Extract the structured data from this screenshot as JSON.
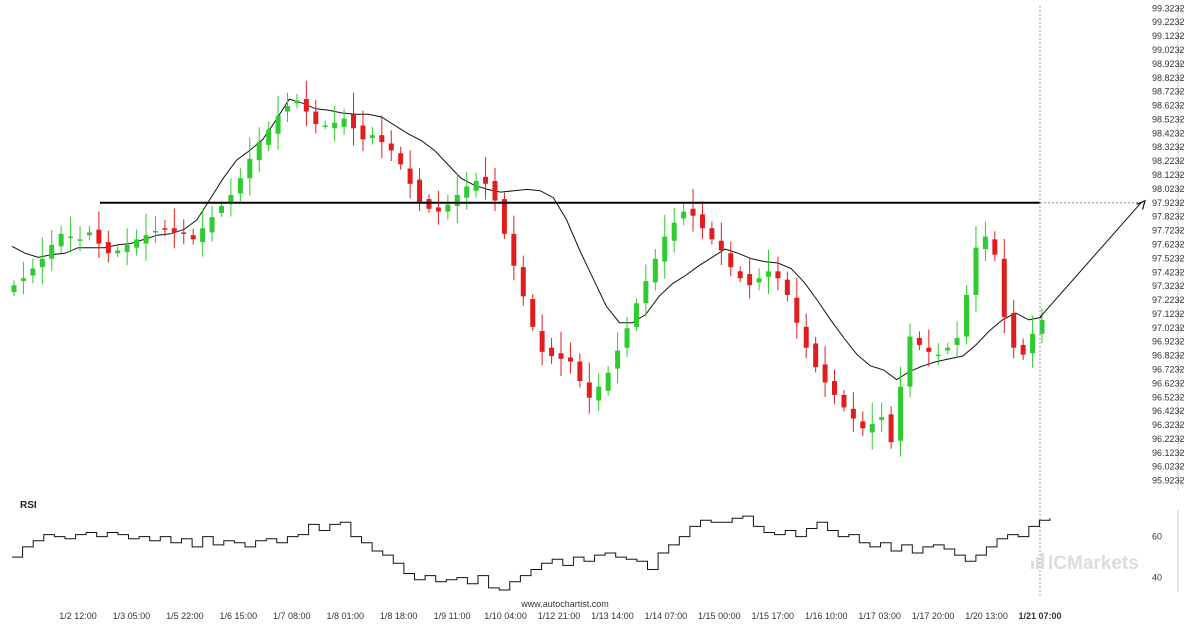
{
  "chart_data": {
    "type": "candlestick",
    "y_ticks": [
      "99.3232",
      "99.2232",
      "99.1232",
      "99.0232",
      "98.9232",
      "98.8232",
      "98.7232",
      "98.6232",
      "98.5232",
      "98.4232",
      "98.3232",
      "98.2232",
      "98.1232",
      "98.0232",
      "97.9232",
      "97.8232",
      "97.7232",
      "97.6232",
      "97.5232",
      "97.4232",
      "97.3232",
      "97.2232",
      "97.1232",
      "97.0232",
      "96.9232",
      "96.8232",
      "96.7232",
      "96.6232",
      "96.5232",
      "96.4232",
      "96.3232",
      "96.2232",
      "96.1232",
      "96.0232",
      "95.9232"
    ],
    "ylim": [
      95.87,
      99.34
    ],
    "x_ticks": [
      "1/2 12:00",
      "1/3 05:00",
      "1/5 22:00",
      "1/6 15:00",
      "1/7 08:00",
      "1/8 01:00",
      "1/8 18:00",
      "1/9 11:00",
      "1/10 04:00",
      "1/12 21:00",
      "1/13 14:00",
      "1/14 07:00",
      "1/15 00:00",
      "1/15 17:00",
      "1/16 10:00",
      "1/17 03:00",
      "1/17 20:00",
      "1/20 13:00",
      "1/21 07:00"
    ],
    "highlighted_x_tick": "1/21 07:00",
    "closes": [
      97.33,
      97.38,
      97.45,
      97.52,
      97.62,
      97.7,
      97.68,
      97.66,
      97.71,
      97.63,
      97.56,
      97.58,
      97.62,
      97.66,
      97.69,
      97.72,
      97.73,
      97.71,
      97.7,
      97.66,
      97.74,
      97.82,
      97.9,
      97.98,
      98.1,
      98.24,
      98.36,
      98.45,
      98.55,
      98.62,
      98.66,
      98.58,
      98.49,
      98.48,
      98.5,
      98.53,
      98.46,
      98.38,
      98.41,
      98.36,
      98.3,
      98.2,
      98.06,
      97.93,
      97.88,
      97.86,
      97.91,
      97.98,
      98.04,
      98.08,
      98.06,
      97.94,
      97.7,
      97.47,
      97.25,
      97.03,
      96.85,
      96.82,
      96.8,
      96.78,
      96.64,
      96.52,
      96.6,
      96.7,
      96.86,
      97.02,
      97.2,
      97.36,
      97.52,
      97.68,
      97.78,
      97.86,
      97.83,
      97.74,
      97.66,
      97.58,
      97.46,
      97.38,
      97.33,
      97.38,
      97.43,
      97.38,
      97.26,
      97.06,
      96.88,
      96.74,
      96.63,
      96.54,
      96.45,
      96.37,
      96.3,
      96.33,
      96.38,
      96.2,
      96.6,
      96.96,
      96.9,
      96.85,
      96.83,
      96.88,
      96.95,
      97.26,
      97.6,
      97.68,
      97.55,
      97.1,
      96.88,
      96.83,
      96.98,
      97.08
    ],
    "ma_series": {
      "name": "",
      "values": [
        97.61,
        97.56,
        97.53,
        97.55,
        97.56,
        97.6,
        97.6,
        97.6,
        97.62,
        97.63,
        97.66,
        97.69,
        97.7,
        97.73,
        97.8,
        97.95,
        98.1,
        98.23,
        98.3,
        98.38,
        98.52,
        98.67,
        98.64,
        98.6,
        98.59,
        98.57,
        98.56,
        98.56,
        98.54,
        98.48,
        98.42,
        98.37,
        98.3,
        98.2,
        98.1,
        98.05,
        98.02,
        98,
        98.01,
        98.02,
        98.01,
        97.96,
        97.8,
        97.58,
        97.38,
        97.18,
        97.06,
        97.06,
        97.12,
        97.25,
        97.34,
        97.4,
        97.47,
        97.53,
        97.59,
        97.56,
        97.52,
        97.5,
        97.49,
        97.45,
        97.35,
        97.22,
        97.08,
        96.95,
        96.83,
        96.75,
        96.72,
        96.65,
        96.71,
        96.75,
        96.78,
        96.8,
        96.82,
        96.9,
        97.0,
        97.08,
        97.13,
        97.08,
        97.1
      ]
    },
    "horizontal_line": 97.9232,
    "projection": {
      "from": 97.1,
      "to": 97.9232
    },
    "rsi": {
      "label": "RSI",
      "ticks": [
        "60",
        "40"
      ],
      "ylim": [
        33,
        73
      ],
      "values": [
        50,
        55,
        58,
        61,
        60,
        59,
        61,
        62,
        60,
        62,
        61,
        59,
        60,
        58,
        60,
        57,
        59,
        55,
        60,
        56,
        58,
        57,
        55,
        58,
        59,
        57,
        60,
        61,
        66,
        63,
        66,
        67,
        60,
        57,
        53,
        51,
        47,
        42,
        39,
        41,
        38,
        39,
        40,
        37,
        41,
        35,
        34,
        38,
        41,
        44,
        47,
        49,
        46,
        50,
        48,
        51,
        52,
        50,
        49,
        48,
        44,
        52,
        56,
        60,
        65,
        68,
        67,
        67,
        69,
        70,
        65,
        62,
        61,
        63,
        60,
        64,
        67,
        63,
        60,
        61,
        57,
        55,
        57,
        53,
        56,
        52,
        55,
        56,
        54,
        51,
        48,
        51,
        55,
        59,
        61,
        60,
        65,
        68,
        69
      ]
    },
    "source_text": "www.autochartist.com",
    "watermark": "ICMarkets",
    "colors": {
      "bull": "#2ecc2e",
      "bear": "#e01e1e",
      "line": "#000000",
      "grid": "#999999"
    }
  }
}
